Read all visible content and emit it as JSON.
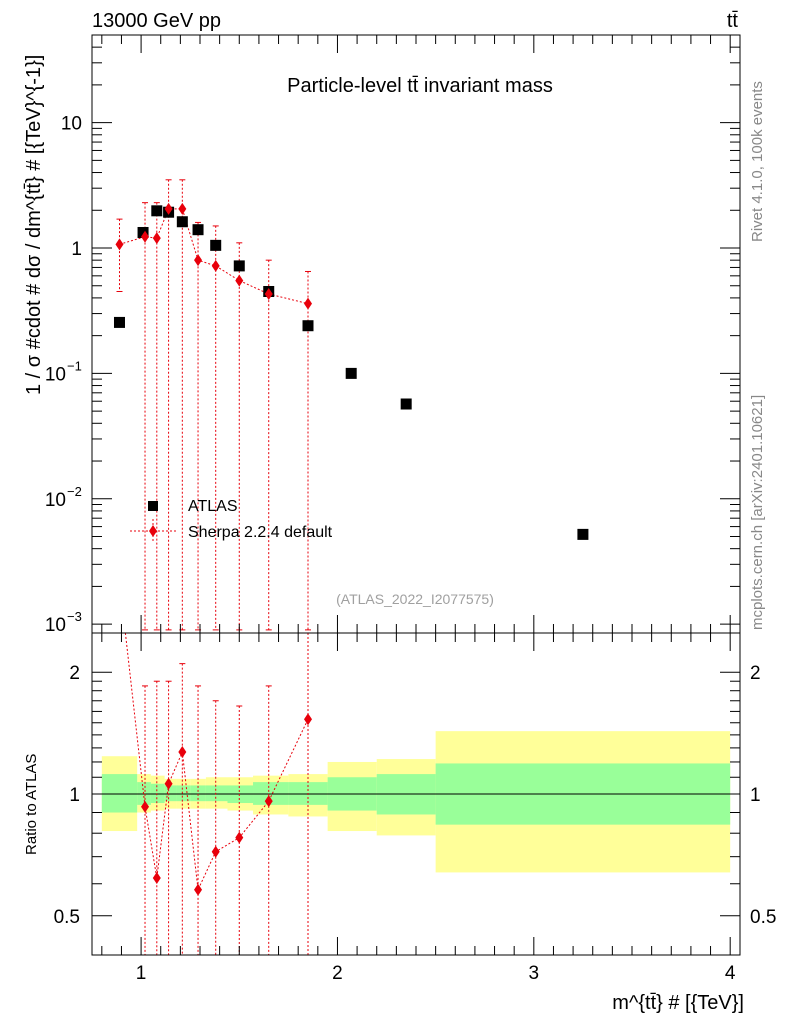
{
  "header": {
    "collision_label": "13000 GeV pp",
    "process_label": "tt̄"
  },
  "side_labels": {
    "rivet": "Rivet 4.1.0,  100k events",
    "mcplots": "mcplots.cern.ch [arXiv:2401.10621]"
  },
  "chart_data": [
    {
      "type": "scatter",
      "panel": "main",
      "title": "Particle-level tt̄ invariant mass",
      "analysis_tag": "(ATLAS_2022_I2077575)",
      "ylabel": "1 / σ #cdot # dσ / dm^{tt̄} # [{TeV}^{-1}]",
      "yscale": "log",
      "ylim": [
        0.00085,
        50
      ],
      "xlim": [
        0.75,
        4.05
      ],
      "y_ticks": [
        {
          "value": 0.001,
          "label": "10",
          "exp": "−3"
        },
        {
          "value": 0.01,
          "label": "10",
          "exp": "−2"
        },
        {
          "value": 0.1,
          "label": "10",
          "exp": "−1"
        },
        {
          "value": 1,
          "label": "1",
          "exp": ""
        },
        {
          "value": 10,
          "label": "10",
          "exp": ""
        }
      ],
      "legend": [
        {
          "name": "ATLAS",
          "marker": "square",
          "color": "#000000"
        },
        {
          "name": "Sherpa 2.2.4 default",
          "marker": "diamond",
          "color": "#e8000b",
          "line": "dotted"
        }
      ],
      "legend_position": "lower-left",
      "series": [
        {
          "name": "ATLAS",
          "x": [
            0.89,
            1.01,
            1.08,
            1.14,
            1.21,
            1.29,
            1.38,
            1.5,
            1.65,
            1.85,
            2.07,
            2.35,
            3.25
          ],
          "y": [
            0.255,
            1.33,
            1.98,
            1.93,
            1.62,
            1.4,
            1.05,
            0.72,
            0.45,
            0.24,
            0.1,
            0.057,
            0.0052
          ]
        },
        {
          "name": "Sherpa 2.2.4 default",
          "x": [
            0.89,
            1.02,
            1.08,
            1.14,
            1.21,
            1.29,
            1.38,
            1.5,
            1.65,
            1.85
          ],
          "y": [
            1.07,
            1.23,
            1.2,
            2.05,
            2.05,
            0.8,
            0.72,
            0.55,
            0.43,
            0.36
          ],
          "err_up": [
            1.7,
            2.3,
            2.3,
            3.5,
            3.5,
            1.6,
            1.5,
            1.1,
            0.8,
            0.65
          ],
          "err_down": [
            0.45,
            0.0009,
            0.0009,
            0.0009,
            0.0009,
            0.0009,
            0.0009,
            0.0009,
            0.0009,
            0.0009
          ]
        }
      ]
    },
    {
      "type": "scatter",
      "panel": "ratio",
      "ylabel": "Ratio to ATLAS",
      "xlabel": "m^{tt̄} # [{TeV}]",
      "yscale": "log",
      "ylim": [
        0.4,
        2.5
      ],
      "xlim": [
        0.75,
        4.05
      ],
      "y_ticks": [
        {
          "value": 0.5,
          "label": "0.5"
        },
        {
          "value": 1,
          "label": "1"
        },
        {
          "value": 2,
          "label": "2"
        }
      ],
      "x_ticks": [
        {
          "value": 1,
          "label": "1"
        },
        {
          "value": 2,
          "label": "2"
        },
        {
          "value": 3,
          "label": "3"
        },
        {
          "value": 4,
          "label": "4"
        }
      ],
      "uncertainty_bands": [
        {
          "x0": 0.8,
          "x1": 0.98,
          "inner": [
            0.9,
            1.12
          ],
          "outer": [
            0.81,
            1.24
          ]
        },
        {
          "x0": 0.98,
          "x1": 1.05,
          "inner": [
            0.94,
            1.07
          ],
          "outer": [
            0.9,
            1.12
          ]
        },
        {
          "x0": 1.05,
          "x1": 1.12,
          "inner": [
            0.95,
            1.06
          ],
          "outer": [
            0.91,
            1.11
          ]
        },
        {
          "x0": 1.12,
          "x1": 1.18,
          "inner": [
            0.96,
            1.05
          ],
          "outer": [
            0.92,
            1.09
          ]
        },
        {
          "x0": 1.18,
          "x1": 1.25,
          "inner": [
            0.96,
            1.05
          ],
          "outer": [
            0.92,
            1.09
          ]
        },
        {
          "x0": 1.25,
          "x1": 1.33,
          "inner": [
            0.96,
            1.05
          ],
          "outer": [
            0.92,
            1.09
          ]
        },
        {
          "x0": 1.33,
          "x1": 1.44,
          "inner": [
            0.96,
            1.05
          ],
          "outer": [
            0.92,
            1.1
          ]
        },
        {
          "x0": 1.44,
          "x1": 1.57,
          "inner": [
            0.95,
            1.05
          ],
          "outer": [
            0.91,
            1.1
          ]
        },
        {
          "x0": 1.57,
          "x1": 1.75,
          "inner": [
            0.94,
            1.07
          ],
          "outer": [
            0.89,
            1.11
          ]
        },
        {
          "x0": 1.75,
          "x1": 1.95,
          "inner": [
            0.94,
            1.07
          ],
          "outer": [
            0.88,
            1.12
          ]
        },
        {
          "x0": 1.95,
          "x1": 2.2,
          "inner": [
            0.91,
            1.1
          ],
          "outer": [
            0.81,
            1.2
          ]
        },
        {
          "x0": 2.2,
          "x1": 2.5,
          "inner": [
            0.89,
            1.12
          ],
          "outer": [
            0.79,
            1.22
          ]
        },
        {
          "x0": 2.5,
          "x1": 4.0,
          "inner": [
            0.84,
            1.19
          ],
          "outer": [
            0.64,
            1.43
          ]
        }
      ],
      "series": [
        {
          "name": "Sherpa 2.2.4 default",
          "x": [
            1.02,
            1.08,
            1.14,
            1.21,
            1.29,
            1.38,
            1.5,
            1.65,
            1.85
          ],
          "y": [
            0.93,
            0.62,
            1.06,
            1.27,
            0.58,
            0.72,
            0.78,
            0.96,
            1.53
          ],
          "err_up": [
            1.85,
            1.9,
            1.9,
            2.1,
            1.85,
            1.7,
            1.65,
            1.85,
            2.6
          ],
          "err_down": [
            0.38,
            0.38,
            0.38,
            0.38,
            0.38,
            0.38,
            0.38,
            0.38,
            0.38
          ]
        }
      ],
      "lead_in": {
        "x0": 0.92,
        "y0": 2.6
      }
    }
  ]
}
